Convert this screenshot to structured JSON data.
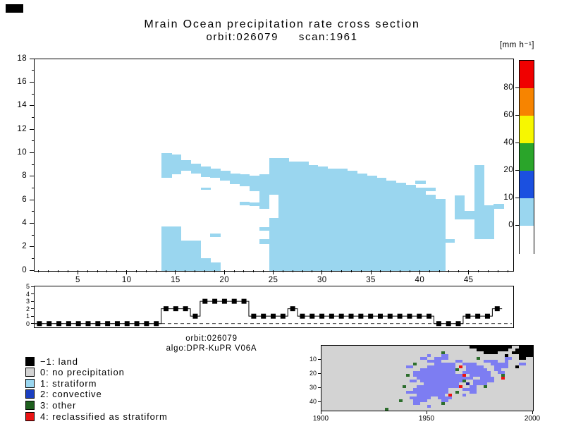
{
  "header": {
    "title": "Mrain Ocean precipitation rate cross section",
    "subtitle": "orbit:026079     scan:1961",
    "units_label": "[mm h⁻¹]"
  },
  "captions": {
    "orbit": "orbit:026079",
    "algo": "algo:DPR-KuPR V06A"
  },
  "legend": {
    "items": [
      {
        "value": -1,
        "label": "−1: land",
        "color": "#000000"
      },
      {
        "value": 0,
        "label": "0: no precipitation",
        "color": "#d3d3d3"
      },
      {
        "value": 1,
        "label": "1: stratiform",
        "color": "#9ad6ef"
      },
      {
        "value": 2,
        "label": "2: convective",
        "color": "#1b3fc0"
      },
      {
        "value": 3,
        "label": "3: other",
        "color": "#1e5f1e"
      },
      {
        "value": 4,
        "label": "4: reclassified as stratiform",
        "color": "#e91515"
      }
    ]
  },
  "chart_data": [
    {
      "id": "cross_section",
      "type": "area",
      "title": "Mrain Ocean precipitation rate cross section",
      "subtitle": "orbit:026079  scan:1961",
      "unit": "mm h⁻¹",
      "xlim": [
        0.5,
        49.5
      ],
      "ylim": [
        0,
        18
      ],
      "x_ticks": [
        5,
        10,
        15,
        20,
        25,
        30,
        35,
        40,
        45
      ],
      "y_ticks": [
        0,
        2,
        4,
        6,
        8,
        10,
        12,
        14,
        16,
        18
      ],
      "fill_color": "#9ad6ef",
      "grid": false,
      "columns": [
        {
          "x": 14,
          "spans": [
            [
              0,
              3.8
            ],
            [
              7.9,
              10.0
            ]
          ]
        },
        {
          "x": 15,
          "spans": [
            [
              0,
              3.8
            ],
            [
              8.2,
              9.9
            ]
          ]
        },
        {
          "x": 16,
          "spans": [
            [
              0,
              2.6
            ],
            [
              8.5,
              9.4
            ]
          ]
        },
        {
          "x": 17,
          "spans": [
            [
              0,
              2.6
            ],
            [
              8.3,
              9.1
            ]
          ]
        },
        {
          "x": 18,
          "spans": [
            [
              0,
              1.1
            ],
            [
              6.9,
              7.1
            ],
            [
              8.0,
              8.9
            ]
          ]
        },
        {
          "x": 19,
          "spans": [
            [
              0,
              0.7
            ],
            [
              2.9,
              3.2
            ],
            [
              7.9,
              8.7
            ]
          ]
        },
        {
          "x": 20,
          "spans": [
            [
              7.7,
              8.5
            ]
          ]
        },
        {
          "x": 21,
          "spans": [
            [
              7.4,
              8.3
            ]
          ]
        },
        {
          "x": 22,
          "spans": [
            [
              5.6,
              5.9
            ],
            [
              7.2,
              8.2
            ]
          ]
        },
        {
          "x": 23,
          "spans": [
            [
              5.5,
              5.8
            ],
            [
              6.8,
              8.1
            ]
          ]
        },
        {
          "x": 24,
          "spans": [
            [
              2.3,
              2.7
            ],
            [
              3.4,
              3.7
            ],
            [
              5.3,
              8.2
            ]
          ]
        },
        {
          "x": 25,
          "spans": [
            [
              0,
              4.5
            ],
            [
              6.5,
              9.6
            ]
          ]
        },
        {
          "x": 26,
          "spans": [
            [
              0,
              9.6
            ]
          ]
        },
        {
          "x": 27,
          "spans": [
            [
              0,
              9.3
            ]
          ]
        },
        {
          "x": 28,
          "spans": [
            [
              0,
              9.3
            ]
          ]
        },
        {
          "x": 29,
          "spans": [
            [
              0,
              9.0
            ]
          ]
        },
        {
          "x": 30,
          "spans": [
            [
              0,
              8.9
            ]
          ]
        },
        {
          "x": 31,
          "spans": [
            [
              0,
              8.7
            ]
          ]
        },
        {
          "x": 32,
          "spans": [
            [
              0,
              8.7
            ]
          ]
        },
        {
          "x": 33,
          "spans": [
            [
              0,
              8.5
            ]
          ]
        },
        {
          "x": 34,
          "spans": [
            [
              0,
              8.3
            ]
          ]
        },
        {
          "x": 35,
          "spans": [
            [
              0,
              8.1
            ]
          ]
        },
        {
          "x": 36,
          "spans": [
            [
              0,
              7.9
            ]
          ]
        },
        {
          "x": 37,
          "spans": [
            [
              0,
              7.7
            ]
          ]
        },
        {
          "x": 38,
          "spans": [
            [
              0,
              7.5
            ]
          ]
        },
        {
          "x": 39,
          "spans": [
            [
              0,
              7.3
            ]
          ]
        },
        {
          "x": 40,
          "spans": [
            [
              0,
              7.1
            ],
            [
              7.4,
              7.7
            ]
          ]
        },
        {
          "x": 41,
          "spans": [
            [
              0,
              6.5
            ],
            [
              6.8,
              7.1
            ]
          ]
        },
        {
          "x": 42,
          "spans": [
            [
              0,
              6.1
            ]
          ]
        },
        {
          "x": 43,
          "spans": [
            [
              2.4,
              2.7
            ]
          ]
        },
        {
          "x": 44,
          "spans": [
            [
              4.4,
              6.4
            ]
          ]
        },
        {
          "x": 45,
          "spans": [
            [
              4.4,
              5.1
            ]
          ]
        },
        {
          "x": 46,
          "spans": [
            [
              2.7,
              9.0
            ]
          ]
        },
        {
          "x": 47,
          "spans": [
            [
              2.7,
              5.6
            ]
          ]
        },
        {
          "x": 48,
          "spans": [
            [
              5.3,
              5.7
            ]
          ]
        }
      ]
    },
    {
      "id": "colorbar",
      "type": "bar",
      "orientation": "vertical",
      "unit": "[mm h⁻¹]",
      "segments_top_to_bottom": [
        "#f00000",
        "#f78400",
        "#f7f700",
        "#2aa52a",
        "#1b50e0",
        "#9ad6ef",
        "#ffffff"
      ],
      "boundary_ticks_top_to_bottom": [
        80,
        60,
        40,
        20,
        10,
        0
      ]
    },
    {
      "id": "rain_type_profile",
      "type": "line",
      "marker": "square",
      "x_start": 1,
      "ylim": [
        -0.5,
        5
      ],
      "y_ticks": [
        0,
        1,
        2,
        3,
        4,
        5
      ],
      "zero_line": "dashed",
      "values": [
        0,
        0,
        0,
        0,
        0,
        0,
        0,
        0,
        0,
        0,
        0,
        0,
        0,
        2,
        2,
        2,
        1,
        3,
        3,
        3,
        3,
        3,
        1,
        1,
        1,
        1,
        2,
        1,
        1,
        1,
        1,
        1,
        1,
        1,
        1,
        1,
        1,
        1,
        1,
        1,
        1,
        0,
        0,
        0,
        1,
        1,
        1,
        2
      ]
    },
    {
      "id": "classification_map",
      "type": "heatmap",
      "xlim": [
        1900,
        2000
      ],
      "x_ticks": [
        1900,
        1950,
        2000
      ],
      "y_ticks": [
        10,
        20,
        30,
        40
      ],
      "cell_palette": {
        ".": "#d3d3d3",
        "b": "#7d7df2",
        "s": "#9ad6ef",
        "c": "#23238f",
        "g": "#2d6e2d",
        "k": "#000000",
        "r": "#ee1111"
      },
      "rows": [
        "..........................................kkkkkkkkkkkk..kkkk",
        "............................................kkkkkkkkk..kkkkk",
        "..................................g...........kkkk....kkkkkk",
        "..............................b...bb................k...kkkk",
        "............................bb..bbbb........g.......bb..kk..",
        "..............................bbbb....bb......bbbb..b.......",
        "..........................g.....bbbbbb..bbbb....bbbbb...bb..",
        "........................bb....bbbbbbbb.r.bbbbb...bbbb..k....",
        "............................bbbbbbbbbbg..bbbbbb..bb.........",
        "..........................bbbbbbbbbbbb..bbbbbbbb..bb........",
        "........................g.bbbbbbbbbbbbbbr.bbbbbb...g........",
        "...........................bbbbbbbbbbbbbbbb..bbbb..r........",
        ".........................bb.bbbbbbbbbbbbg..bbbbbb...........",
        ".............................bbbbbbbbbb..c.bbbb.............",
        ".......................g...bbbbbbbbbbbbr..bb..g.............",
        "..........................bbbbbbbbbb....bbbb................",
        "........................bbbbbbbbbbbb..g...bb................",
        "...........................bbbbbbbb.r...b...................",
        ".........................bbbbbb..bbbb.......................",
        "......................g...bbbb....bb........................",
        "..........................bb......g.........................",
        "..............................b.............................",
        "..................g........................................."
      ]
    }
  ]
}
